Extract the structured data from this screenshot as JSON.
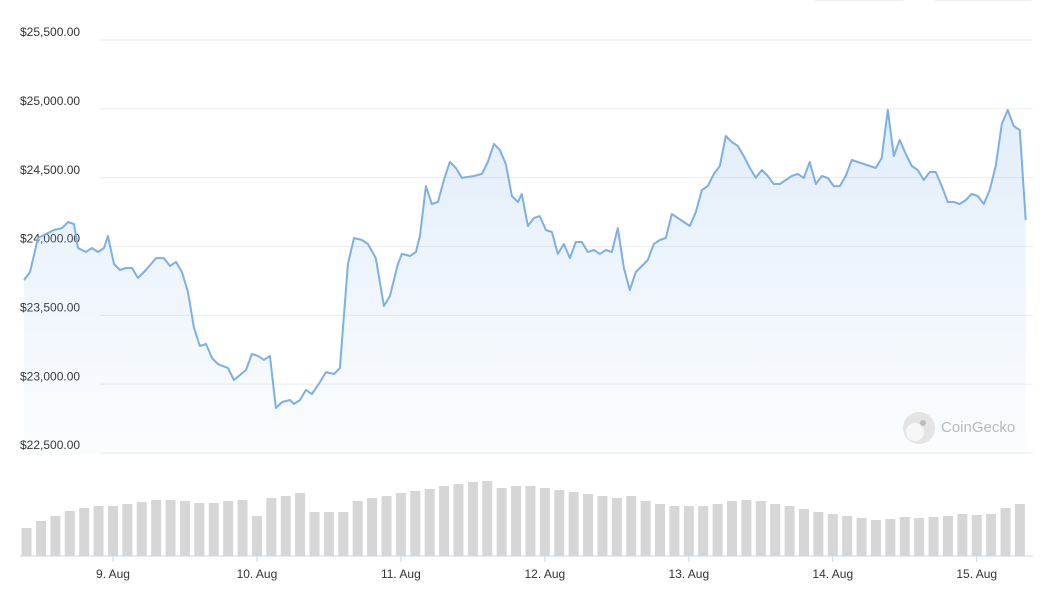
{
  "chart_data": {
    "type": "line",
    "watermark": "CoinGecko",
    "ylim": [
      22500,
      25500
    ],
    "yticks": [
      {
        "value": 22500,
        "label": "$22,500.00"
      },
      {
        "value": 23000,
        "label": "$23,000.00"
      },
      {
        "value": 23500,
        "label": "$23,500.00"
      },
      {
        "value": 24000,
        "label": "$24,000.00"
      },
      {
        "value": 24500,
        "label": "$24,500.00"
      },
      {
        "value": 25000,
        "label": "$25,000.00"
      },
      {
        "value": 25500,
        "label": "$25,500.00"
      }
    ],
    "xlim": [
      8.382,
      15.37
    ],
    "xticks": [
      {
        "value": 9,
        "label": "9. Aug"
      },
      {
        "value": 10,
        "label": "10. Aug"
      },
      {
        "value": 11,
        "label": "11. Aug"
      },
      {
        "value": 12,
        "label": "12. Aug"
      },
      {
        "value": 13,
        "label": "13. Aug"
      },
      {
        "value": 14,
        "label": "14. Aug"
      },
      {
        "value": 15,
        "label": "15. Aug"
      }
    ],
    "grid": true,
    "series": [
      {
        "color": "#7cb0e8",
        "x": [
          8.382,
          8.424,
          8.479,
          8.535,
          8.59,
          8.646,
          8.688,
          8.729,
          8.757,
          8.813,
          8.854,
          8.896,
          8.938,
          8.965,
          9.007,
          9.049,
          9.09,
          9.132,
          9.174,
          9.229,
          9.299,
          9.354,
          9.396,
          9.438,
          9.479,
          9.521,
          9.563,
          9.604,
          9.646,
          9.688,
          9.729,
          9.799,
          9.84,
          9.924,
          9.965,
          10.007,
          10.049,
          10.09,
          10.132,
          10.174,
          10.229,
          10.257,
          10.299,
          10.34,
          10.382,
          10.438,
          10.479,
          10.535,
          10.576,
          10.632,
          10.674,
          10.729,
          10.771,
          10.826,
          10.882,
          10.924,
          10.979,
          11.007,
          11.063,
          11.104,
          11.132,
          11.174,
          11.215,
          11.257,
          11.299,
          11.34,
          11.382,
          11.424,
          11.507,
          11.563,
          11.604,
          11.646,
          11.688,
          11.729,
          11.771,
          11.813,
          11.84,
          11.882,
          11.924,
          11.965,
          12.007,
          12.049,
          12.09,
          12.132,
          12.174,
          12.215,
          12.257,
          12.299,
          12.34,
          12.382,
          12.424,
          12.465,
          12.507,
          12.549,
          12.59,
          12.632,
          12.674,
          12.715,
          12.757,
          12.799,
          12.84,
          12.882,
          12.924,
          12.965,
          13.007,
          13.049,
          13.09,
          13.132,
          13.174,
          13.215,
          13.257,
          13.299,
          13.34,
          13.382,
          13.424,
          13.465,
          13.507,
          13.549,
          13.59,
          13.632,
          13.674,
          13.715,
          13.757,
          13.799,
          13.84,
          13.882,
          13.924,
          13.965,
          14.007,
          14.049,
          14.09,
          14.132,
          14.174,
          14.215,
          14.257,
          14.299,
          14.34,
          14.382,
          14.424,
          14.465,
          14.507,
          14.549,
          14.59,
          14.632,
          14.674,
          14.715,
          14.757,
          14.799,
          14.84,
          14.882,
          14.924,
          14.965,
          15.007,
          15.049,
          15.09,
          15.132,
          15.174,
          15.215,
          15.257,
          15.299,
          15.34
        ],
        "values": [
          23757,
          23815,
          24062,
          24091,
          24120,
          24134,
          24178,
          24163,
          23989,
          23960,
          23989,
          23960,
          23989,
          24076,
          23873,
          23829,
          23844,
          23844,
          23771,
          23829,
          23916,
          23916,
          23858,
          23888,
          23815,
          23670,
          23408,
          23277,
          23292,
          23190,
          23146,
          23117,
          23030,
          23103,
          23219,
          23205,
          23176,
          23205,
          22827,
          22870,
          22885,
          22856,
          22885,
          22958,
          22928,
          23016,
          23088,
          23074,
          23117,
          23873,
          24062,
          24047,
          24018,
          23916,
          23568,
          23640,
          23873,
          23946,
          23931,
          23960,
          24076,
          24439,
          24309,
          24323,
          24483,
          24614,
          24570,
          24498,
          24512,
          24527,
          24614,
          24745,
          24701,
          24599,
          24367,
          24323,
          24381,
          24149,
          24207,
          24221,
          24120,
          24105,
          23946,
          24018,
          23916,
          24033,
          24033,
          23960,
          23975,
          23946,
          23975,
          23960,
          24134,
          23844,
          23684,
          23815,
          23858,
          23902,
          24018,
          24047,
          24062,
          24236,
          24207,
          24178,
          24149,
          24251,
          24410,
          24439,
          24527,
          24585,
          24803,
          24759,
          24730,
          24657,
          24570,
          24498,
          24556,
          24512,
          24454,
          24454,
          24483,
          24512,
          24527,
          24498,
          24614,
          24454,
          24512,
          24498,
          24439,
          24439,
          24512,
          24628,
          24614,
          24599,
          24585,
          24570,
          24643,
          24992,
          24657,
          24774,
          24672,
          24585,
          24556,
          24483,
          24541,
          24541,
          24439,
          24323,
          24323,
          24309,
          24338,
          24381,
          24367,
          24309,
          24410,
          24585,
          24890,
          24992,
          24875,
          24846,
          24192
        ]
      }
    ],
    "volume": {
      "color": "#d6d6d6",
      "x": [
        8.4,
        8.5,
        8.6,
        8.7,
        8.8,
        8.9,
        9.0,
        9.1,
        9.2,
        9.3,
        9.4,
        9.5,
        9.6,
        9.7,
        9.8,
        9.9,
        10.0,
        10.1,
        10.2,
        10.3,
        10.4,
        10.5,
        10.6,
        10.7,
        10.8,
        10.9,
        11.0,
        11.1,
        11.2,
        11.3,
        11.4,
        11.5,
        11.6,
        11.7,
        11.8,
        11.9,
        12.0,
        12.1,
        12.2,
        12.3,
        12.4,
        12.5,
        12.6,
        12.7,
        12.8,
        12.9,
        13.0,
        13.1,
        13.2,
        13.3,
        13.4,
        13.5,
        13.6,
        13.7,
        13.8,
        13.9,
        14.0,
        14.1,
        14.2,
        14.3,
        14.4,
        14.5,
        14.6,
        14.7,
        14.8,
        14.9,
        15.0,
        15.1,
        15.2,
        15.3
      ],
      "values": [
        28,
        35,
        40,
        45,
        48,
        50,
        50,
        52,
        54,
        56,
        56,
        55,
        53,
        53,
        55,
        56,
        40,
        58,
        60,
        63,
        44,
        44,
        44,
        55,
        58,
        60,
        63,
        65,
        67,
        70,
        72,
        74,
        75,
        68,
        70,
        70,
        68,
        66,
        64,
        62,
        60,
        58,
        60,
        55,
        52,
        50,
        50,
        50,
        52,
        55,
        56,
        55,
        52,
        50,
        47,
        44,
        42,
        40,
        38,
        36,
        37,
        39,
        38,
        39,
        40,
        42,
        41,
        42,
        48,
        52
      ]
    }
  }
}
